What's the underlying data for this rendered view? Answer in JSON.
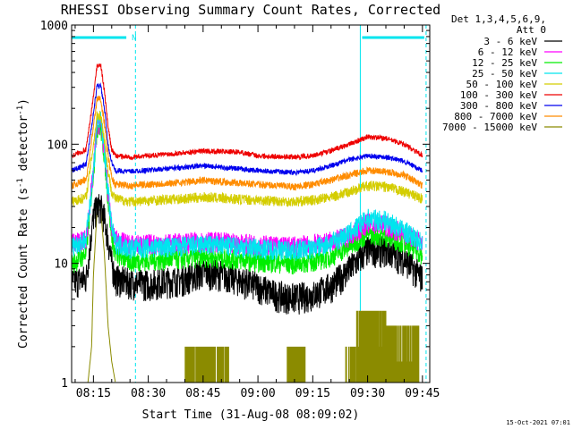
{
  "chart_data": {
    "type": "line",
    "title": "RHESSI Observing Summary Count Rates, Corrected",
    "xlabel": "Start Time (31-Aug-08 08:09:02)",
    "ylabel_parts": {
      "pre": "Corrected Count Rate (s",
      "exp1": "-1",
      "mid": " detector",
      "exp2": "-1",
      "post": ")"
    },
    "y_scale": "log",
    "ylim": [
      1,
      1000
    ],
    "xlim": [
      "08:09:02",
      "09:47:00"
    ],
    "x_ticks": [
      "08:15",
      "08:30",
      "08:45",
      "09:00",
      "09:15",
      "09:30",
      "09:45"
    ],
    "y_ticks": [
      "1",
      "10",
      "100",
      "1000"
    ],
    "legend": {
      "placement": "top-right",
      "header": [
        "Det 1,3,4,5,6,9,",
        "Att 0"
      ],
      "entries": [
        {
          "label": "3 - 6 keV",
          "color": "#000000"
        },
        {
          "label": "6 - 12 keV",
          "color": "#ff00ff"
        },
        {
          "label": "12 - 25 keV",
          "color": "#00ee00"
        },
        {
          "label": "25 - 50 keV",
          "color": "#00e5ee"
        },
        {
          "label": "50 - 100 keV",
          "color": "#d4cd00"
        },
        {
          "label": "100 - 300 keV",
          "color": "#ee0000"
        },
        {
          "label": "300 - 800 keV",
          "color": "#0000ee"
        },
        {
          "label": "800 - 7000 keV",
          "color": "#ff8c00"
        },
        {
          "label": "7000 - 15000 keV",
          "color": "#8b8b00"
        }
      ]
    },
    "night_marker": "N",
    "flag_bars_color": "#00e5ee",
    "flag_bars": [
      [
        "08:09:02",
        "08:24:00"
      ],
      [
        "09:28:30",
        "09:45:30"
      ]
    ],
    "boundaries": [
      {
        "time": "08:09:02",
        "style": "solid"
      },
      {
        "time": "08:26:30",
        "style": "dashed"
      },
      {
        "time": "09:28:00",
        "style": "solid"
      },
      {
        "time": "09:46:00",
        "style": "dashed"
      }
    ],
    "series": [
      {
        "name": "3 - 6 keV",
        "color": "#000000",
        "noise": 0.3,
        "points": [
          [
            "08:09:02",
            7
          ],
          [
            "08:13:00",
            7.5
          ],
          [
            "08:15:00",
            25
          ],
          [
            "08:16:00",
            30
          ],
          [
            "08:17:00",
            30
          ],
          [
            "08:18:00",
            24
          ],
          [
            "08:19:00",
            16
          ],
          [
            "08:20:00",
            10
          ],
          [
            "08:21:00",
            7.5
          ],
          [
            "08:25:00",
            7
          ],
          [
            "08:30:00",
            6.8
          ],
          [
            "08:40:00",
            7.5
          ],
          [
            "08:45:00",
            8.5
          ],
          [
            "08:50:00",
            8.2
          ],
          [
            "08:55:00",
            7.3
          ],
          [
            "09:00:00",
            6.5
          ],
          [
            "09:05:00",
            5.5
          ],
          [
            "09:10:00",
            5.2
          ],
          [
            "09:15:00",
            5.5
          ],
          [
            "09:20:00",
            6.5
          ],
          [
            "09:25:00",
            9
          ],
          [
            "09:30:00",
            13
          ],
          [
            "09:35:00",
            13
          ],
          [
            "09:40:00",
            11
          ],
          [
            "09:45:00",
            7.5
          ]
        ]
      },
      {
        "name": "6 - 12 keV",
        "color": "#ff00ff",
        "noise": 0.2,
        "points": [
          [
            "08:09:02",
            15
          ],
          [
            "08:13:00",
            16
          ],
          [
            "08:15:00",
            60
          ],
          [
            "08:16:00",
            150
          ],
          [
            "08:17:00",
            150
          ],
          [
            "08:18:00",
            90
          ],
          [
            "08:19:00",
            40
          ],
          [
            "08:20:00",
            20
          ],
          [
            "08:21:00",
            16
          ],
          [
            "08:25:00",
            14.5
          ],
          [
            "08:40:00",
            15
          ],
          [
            "08:45:00",
            15.5
          ],
          [
            "09:00:00",
            14.5
          ],
          [
            "09:10:00",
            14
          ],
          [
            "09:15:00",
            14.5
          ],
          [
            "09:20:00",
            15.5
          ],
          [
            "09:25:00",
            17
          ],
          [
            "09:30:00",
            22
          ],
          [
            "09:35:00",
            21
          ],
          [
            "09:40:00",
            18
          ],
          [
            "09:45:00",
            15
          ]
        ]
      },
      {
        "name": "12 - 25 keV",
        "color": "#00ee00",
        "noise": 0.2,
        "points": [
          [
            "08:09:02",
            10
          ],
          [
            "08:13:00",
            12
          ],
          [
            "08:15:00",
            60
          ],
          [
            "08:16:00",
            140
          ],
          [
            "08:17:00",
            140
          ],
          [
            "08:18:00",
            80
          ],
          [
            "08:19:00",
            35
          ],
          [
            "08:20:00",
            17
          ],
          [
            "08:21:00",
            12
          ],
          [
            "08:25:00",
            10.5
          ],
          [
            "08:40:00",
            11
          ],
          [
            "08:45:00",
            11.5
          ],
          [
            "09:00:00",
            10.5
          ],
          [
            "09:10:00",
            10
          ],
          [
            "09:15:00",
            10.5
          ],
          [
            "09:20:00",
            11.5
          ],
          [
            "09:25:00",
            14
          ],
          [
            "09:30:00",
            18
          ],
          [
            "09:35:00",
            17
          ],
          [
            "09:40:00",
            15
          ],
          [
            "09:45:00",
            12
          ]
        ]
      },
      {
        "name": "25 - 50 keV",
        "color": "#00e5ee",
        "noise": 0.2,
        "points": [
          [
            "08:09:02",
            14
          ],
          [
            "08:13:00",
            16
          ],
          [
            "08:15:00",
            60
          ],
          [
            "08:16:00",
            160
          ],
          [
            "08:17:00",
            160
          ],
          [
            "08:18:00",
            90
          ],
          [
            "08:19:00",
            40
          ],
          [
            "08:20:00",
            20
          ],
          [
            "08:21:00",
            15
          ],
          [
            "08:25:00",
            13.5
          ],
          [
            "08:40:00",
            14
          ],
          [
            "08:45:00",
            14.5
          ],
          [
            "09:00:00",
            13.5
          ],
          [
            "09:10:00",
            13
          ],
          [
            "09:15:00",
            13.5
          ],
          [
            "09:20:00",
            15
          ],
          [
            "09:25:00",
            18
          ],
          [
            "09:30:00",
            24
          ],
          [
            "09:35:00",
            23
          ],
          [
            "09:40:00",
            19
          ],
          [
            "09:45:00",
            15
          ]
        ]
      },
      {
        "name": "50 - 100 keV",
        "color": "#d4cd00",
        "noise": 0.1,
        "points": [
          [
            "08:09:02",
            33
          ],
          [
            "08:13:00",
            36
          ],
          [
            "08:15:00",
            100
          ],
          [
            "08:16:00",
            175
          ],
          [
            "08:17:00",
            175
          ],
          [
            "08:18:00",
            110
          ],
          [
            "08:19:00",
            60
          ],
          [
            "08:20:00",
            40
          ],
          [
            "08:21:00",
            35
          ],
          [
            "08:25:00",
            33
          ],
          [
            "08:40:00",
            35
          ],
          [
            "08:45:00",
            36
          ],
          [
            "09:00:00",
            34
          ],
          [
            "09:10:00",
            33
          ],
          [
            "09:15:00",
            34
          ],
          [
            "09:20:00",
            36
          ],
          [
            "09:25:00",
            40
          ],
          [
            "09:30:00",
            45
          ],
          [
            "09:35:00",
            44
          ],
          [
            "09:40:00",
            40
          ],
          [
            "09:45:00",
            35
          ]
        ]
      },
      {
        "name": "100 - 300 keV",
        "color": "#ee0000",
        "noise": 0.05,
        "points": [
          [
            "08:09:02",
            80
          ],
          [
            "08:13:00",
            90
          ],
          [
            "08:15:00",
            250
          ],
          [
            "08:16:00",
            460
          ],
          [
            "08:17:00",
            460
          ],
          [
            "08:18:00",
            280
          ],
          [
            "08:19:00",
            140
          ],
          [
            "08:20:00",
            90
          ],
          [
            "08:21:00",
            80
          ],
          [
            "08:25:00",
            78
          ],
          [
            "08:40:00",
            85
          ],
          [
            "08:45:00",
            88
          ],
          [
            "08:55:00",
            86
          ],
          [
            "09:00:00",
            80
          ],
          [
            "09:10:00",
            78
          ],
          [
            "09:15:00",
            80
          ],
          [
            "09:20:00",
            88
          ],
          [
            "09:25:00",
            100
          ],
          [
            "09:30:00",
            115
          ],
          [
            "09:35:00",
            112
          ],
          [
            "09:40:00",
            100
          ],
          [
            "09:45:00",
            80
          ]
        ]
      },
      {
        "name": "300 - 800 keV",
        "color": "#0000ee",
        "noise": 0.05,
        "points": [
          [
            "08:09:02",
            60
          ],
          [
            "08:13:00",
            68
          ],
          [
            "08:15:00",
            180
          ],
          [
            "08:16:00",
            310
          ],
          [
            "08:17:00",
            310
          ],
          [
            "08:18:00",
            200
          ],
          [
            "08:19:00",
            100
          ],
          [
            "08:20:00",
            70
          ],
          [
            "08:21:00",
            60
          ],
          [
            "08:25:00",
            59
          ],
          [
            "08:40:00",
            64
          ],
          [
            "08:45:00",
            66
          ],
          [
            "09:00:00",
            60
          ],
          [
            "09:10:00",
            58
          ],
          [
            "09:15:00",
            60
          ],
          [
            "09:20:00",
            66
          ],
          [
            "09:25:00",
            74
          ],
          [
            "09:30:00",
            80
          ],
          [
            "09:35:00",
            78
          ],
          [
            "09:40:00",
            72
          ],
          [
            "09:45:00",
            60
          ]
        ]
      },
      {
        "name": "800 - 7000 keV",
        "color": "#ff8c00",
        "noise": 0.07,
        "points": [
          [
            "08:09:02",
            45
          ],
          [
            "08:13:00",
            50
          ],
          [
            "08:15:00",
            140
          ],
          [
            "08:16:00",
            240
          ],
          [
            "08:17:00",
            240
          ],
          [
            "08:18:00",
            150
          ],
          [
            "08:19:00",
            80
          ],
          [
            "08:20:00",
            52
          ],
          [
            "08:21:00",
            46
          ],
          [
            "08:25:00",
            45
          ],
          [
            "08:40:00",
            48
          ],
          [
            "08:45:00",
            50
          ],
          [
            "09:00:00",
            46
          ],
          [
            "09:10:00",
            44
          ],
          [
            "09:15:00",
            46
          ],
          [
            "09:20:00",
            50
          ],
          [
            "09:25:00",
            55
          ],
          [
            "09:30:00",
            60
          ],
          [
            "09:35:00",
            59
          ],
          [
            "09:40:00",
            55
          ],
          [
            "09:45:00",
            45
          ]
        ]
      },
      {
        "name": "7000 - 15000 keV",
        "color": "#8b8b00",
        "noise": 0.0,
        "points": [
          [
            "08:13:30",
            1
          ],
          [
            "08:14:30",
            2
          ],
          [
            "08:15:00",
            8
          ],
          [
            "08:16:00",
            28
          ],
          [
            "08:17:00",
            28
          ],
          [
            "08:18:00",
            12
          ],
          [
            "08:19:00",
            3
          ],
          [
            "08:20:00",
            1.5
          ],
          [
            "08:21:00",
            1
          ]
        ],
        "spikes": [
          [
            "08:40:00",
            "08:52:00",
            2
          ],
          [
            "09:08:00",
            "09:13:00",
            2
          ],
          [
            "09:24:00",
            "09:27:00",
            2
          ],
          [
            "09:27:00",
            "09:35:00",
            4
          ],
          [
            "09:35:00",
            "09:44:00",
            3
          ]
        ]
      }
    ]
  },
  "footer": {
    "timestamp": "15-Oct-2021 07:01"
  }
}
